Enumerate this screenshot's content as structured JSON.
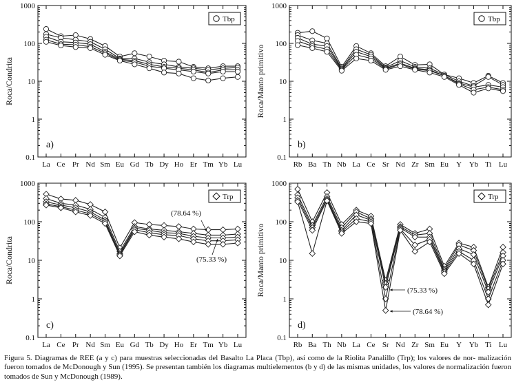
{
  "chart_data": [
    {
      "id": "a",
      "type": "line",
      "panel_label": "a)",
      "ylabel": "Roca/Condrita",
      "yscale": "log",
      "ylim": [
        0.1,
        1000
      ],
      "yticks": [
        "0.1",
        "1",
        "10",
        "100",
        "1000"
      ],
      "marker": "circle",
      "legend": "Tbp",
      "legend_position": "top-right",
      "categories": [
        "La",
        "Ce",
        "Pr",
        "Nd",
        "Sm",
        "Eu",
        "Gd",
        "Tb",
        "Dy",
        "Ho",
        "Er",
        "Tm",
        "Yb",
        "Lu"
      ],
      "series": [
        {
          "name": "s1",
          "values": [
            240,
            155,
            165,
            130,
            85,
            45,
            55,
            45,
            35,
            33,
            24,
            22,
            25,
            25
          ]
        },
        {
          "name": "s2",
          "values": [
            175,
            140,
            125,
            110,
            70,
            40,
            40,
            32,
            28,
            24,
            22,
            20,
            22,
            23
          ]
        },
        {
          "name": "s3",
          "values": [
            150,
            110,
            105,
            95,
            60,
            38,
            35,
            28,
            24,
            22,
            20,
            17,
            20,
            20
          ]
        },
        {
          "name": "s4",
          "values": [
            125,
            95,
            92,
            82,
            55,
            36,
            32,
            25,
            22,
            20,
            18,
            16,
            18,
            18
          ]
        },
        {
          "name": "s5",
          "values": [
            110,
            88,
            80,
            75,
            50,
            35,
            28,
            22,
            17,
            16,
            12,
            10.5,
            12,
            13
          ]
        }
      ],
      "annotations": []
    },
    {
      "id": "b",
      "type": "line",
      "panel_label": "b)",
      "ylabel": "Roca/Manto primitivo",
      "yscale": "log",
      "ylim": [
        0.1,
        1000
      ],
      "yticks": [
        "0.1",
        "1",
        "10",
        "100",
        "1000"
      ],
      "marker": "circle",
      "legend": "Tbp",
      "legend_position": "top-right",
      "categories": [
        "Rb",
        "Ba",
        "Th",
        "Nb",
        "La",
        "Ce",
        "Sr",
        "Nd",
        "Zr",
        "Sm",
        "Eu",
        "Y",
        "Yb",
        "Ti",
        "Lu"
      ],
      "series": [
        {
          "name": "s1",
          "values": [
            190,
            210,
            135,
            24,
            85,
            55,
            25,
            45,
            27,
            28,
            15,
            12,
            9,
            14,
            9
          ]
        },
        {
          "name": "s2",
          "values": [
            165,
            120,
            100,
            22,
            70,
            50,
            23,
            35,
            24,
            22,
            15,
            10,
            7.5,
            13,
            8
          ]
        },
        {
          "name": "s3",
          "values": [
            140,
            95,
            85,
            21,
            60,
            45,
            22,
            30,
            22,
            20,
            14,
            9,
            7,
            8,
            7
          ]
        },
        {
          "name": "s4",
          "values": [
            115,
            85,
            70,
            20,
            50,
            40,
            21,
            28,
            21,
            19,
            14,
            8.5,
            6,
            7,
            6
          ]
        },
        {
          "name": "s5",
          "values": [
            90,
            75,
            60,
            19,
            40,
            35,
            20,
            25,
            20,
            17,
            13,
            8,
            5,
            6.5,
            5.5
          ]
        }
      ],
      "annotations": []
    },
    {
      "id": "c",
      "type": "line",
      "panel_label": "c)",
      "ylabel": "Roca/Condrita",
      "yscale": "log",
      "ylim": [
        0.1,
        1000
      ],
      "yticks": [
        "0.1",
        "1",
        "10",
        "100",
        "1000"
      ],
      "marker": "diamond",
      "legend": "Trp",
      "legend_position": "top-right",
      "categories": [
        "La",
        "Ce",
        "Pr",
        "Nd",
        "Sm",
        "Eu",
        "Gd",
        "Tb",
        "Dy",
        "Ho",
        "Er",
        "Tm",
        "Yb",
        "Lu"
      ],
      "series": [
        {
          "name": "s1",
          "values": [
            520,
            390,
            360,
            280,
            180,
            21,
            95,
            85,
            80,
            75,
            65,
            62,
            62,
            65
          ]
        },
        {
          "name": "s2",
          "values": [
            400,
            300,
            270,
            210,
            130,
            17,
            75,
            65,
            60,
            55,
            50,
            45,
            45,
            48
          ]
        },
        {
          "name": "s3",
          "values": [
            330,
            270,
            230,
            180,
            110,
            15,
            68,
            60,
            52,
            50,
            42,
            38,
            38,
            40
          ]
        },
        {
          "name": "s4",
          "values": [
            290,
            245,
            200,
            160,
            100,
            14,
            62,
            52,
            46,
            44,
            36,
            32,
            32,
            34
          ]
        },
        {
          "name": "s5",
          "values": [
            270,
            230,
            180,
            145,
            90,
            13,
            55,
            45,
            40,
            36,
            30,
            26,
            26,
            28
          ]
        }
      ],
      "annotations": [
        "(78.64 %)",
        "(75.33 %)"
      ]
    },
    {
      "id": "d",
      "type": "line",
      "panel_label": "d)",
      "ylabel": "Roca/Manto primitivo",
      "yscale": "log",
      "ylim": [
        0.1,
        1000
      ],
      "yticks": [
        "0.1",
        "1",
        "10",
        "100",
        "1000"
      ],
      "marker": "diamond",
      "legend": "Trp",
      "legend_position": "top-right",
      "categories": [
        "Rb",
        "Ba",
        "Th",
        "Nb",
        "La",
        "Ce",
        "Sr",
        "Nd",
        "Zr",
        "Sm",
        "Eu",
        "Y",
        "Yb",
        "Ti",
        "Lu"
      ],
      "series": [
        {
          "name": "s1",
          "values": [
            700,
            100,
            570,
            85,
            200,
            140,
            3,
            85,
            50,
            65,
            7,
            28,
            22,
            2,
            22
          ]
        },
        {
          "name": "s2",
          "values": [
            500,
            80,
            450,
            70,
            180,
            120,
            2.5,
            75,
            45,
            50,
            6,
            25,
            18,
            1.8,
            16
          ]
        },
        {
          "name": "s3",
          "values": [
            420,
            70,
            400,
            60,
            150,
            110,
            2,
            70,
            40,
            40,
            5.5,
            20,
            14,
            1.5,
            13
          ]
        },
        {
          "name": "s4",
          "values": [
            360,
            60,
            370,
            55,
            120,
            100,
            1,
            65,
            25,
            35,
            5,
            17,
            10,
            1,
            10
          ]
        },
        {
          "name": "s5",
          "values": [
            330,
            15,
            350,
            50,
            100,
            90,
            0.5,
            60,
            17,
            30,
            4.5,
            15,
            8,
            0.7,
            8
          ]
        }
      ],
      "annotations": [
        "(75.33 %)",
        "(78.64 %)"
      ]
    }
  ],
  "caption": {
    "lines": [
      "Figura 5. Diagramas de REE (a y c) para muestras seleccionadas del Basalto La Placa (Tbp), así como de la Riolita Panalillo (Trp); los valores de nor-",
      "malización fueron tomados de McDonough y Sun (1995). Se presentan también los diagramas multielementos (b y d) de las mismas unidades, los valores",
      "de normalización fueron tomados de Sun y McDonough (1989)."
    ]
  }
}
